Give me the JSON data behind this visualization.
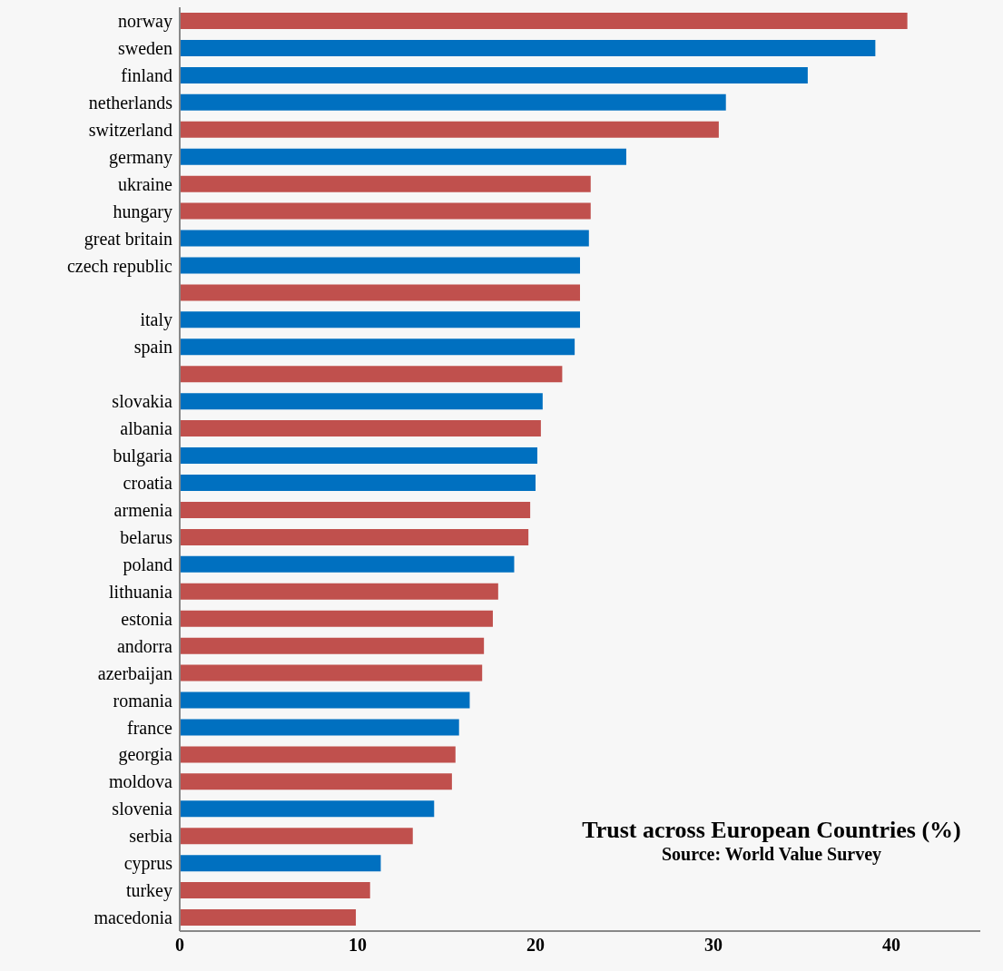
{
  "chart_data": {
    "type": "bar",
    "orientation": "horizontal",
    "title": "Trust across European Countries (%)",
    "subtitle": "Source: World Value Survey",
    "categories": [
      "norway",
      "sweden",
      "finland",
      "netherlands",
      "switzerland",
      "germany",
      "ukraine",
      "hungary",
      "great britain",
      "czech republic",
      null,
      "italy",
      "spain",
      null,
      "slovakia",
      "albania",
      "bulgaria",
      "croatia",
      "armenia",
      "belarus",
      "poland",
      "lithuania",
      "estonia",
      "andorra",
      "azerbaijan",
      "romania",
      "france",
      "georgia",
      "moldova",
      "slovenia",
      "serbia",
      "cyprus",
      "turkey",
      "macedonia"
    ],
    "values": [
      40.9,
      39.1,
      35.3,
      30.7,
      30.3,
      25.1,
      23.1,
      23.1,
      23.0,
      22.5,
      22.5,
      22.5,
      22.2,
      21.5,
      20.4,
      20.3,
      20.1,
      20.0,
      19.7,
      19.6,
      18.8,
      17.9,
      17.6,
      17.1,
      17.0,
      16.3,
      15.7,
      15.5,
      15.3,
      14.3,
      13.1,
      11.3,
      10.7,
      9.9
    ],
    "colors": [
      "#c0504d",
      "#0070c0",
      "#0070c0",
      "#0070c0",
      "#c0504d",
      "#0070c0",
      "#c0504d",
      "#c0504d",
      "#0070c0",
      "#0070c0",
      "#c0504d",
      "#0070c0",
      "#0070c0",
      "#c0504d",
      "#0070c0",
      "#c0504d",
      "#0070c0",
      "#0070c0",
      "#c0504d",
      "#c0504d",
      "#0070c0",
      "#c0504d",
      "#c0504d",
      "#c0504d",
      "#c0504d",
      "#0070c0",
      "#0070c0",
      "#c0504d",
      "#c0504d",
      "#0070c0",
      "#c0504d",
      "#0070c0",
      "#c0504d",
      "#c0504d"
    ],
    "xlim": [
      0,
      45
    ],
    "xticks": [
      0,
      10,
      20,
      30,
      40
    ],
    "grid": false,
    "legend": false
  }
}
